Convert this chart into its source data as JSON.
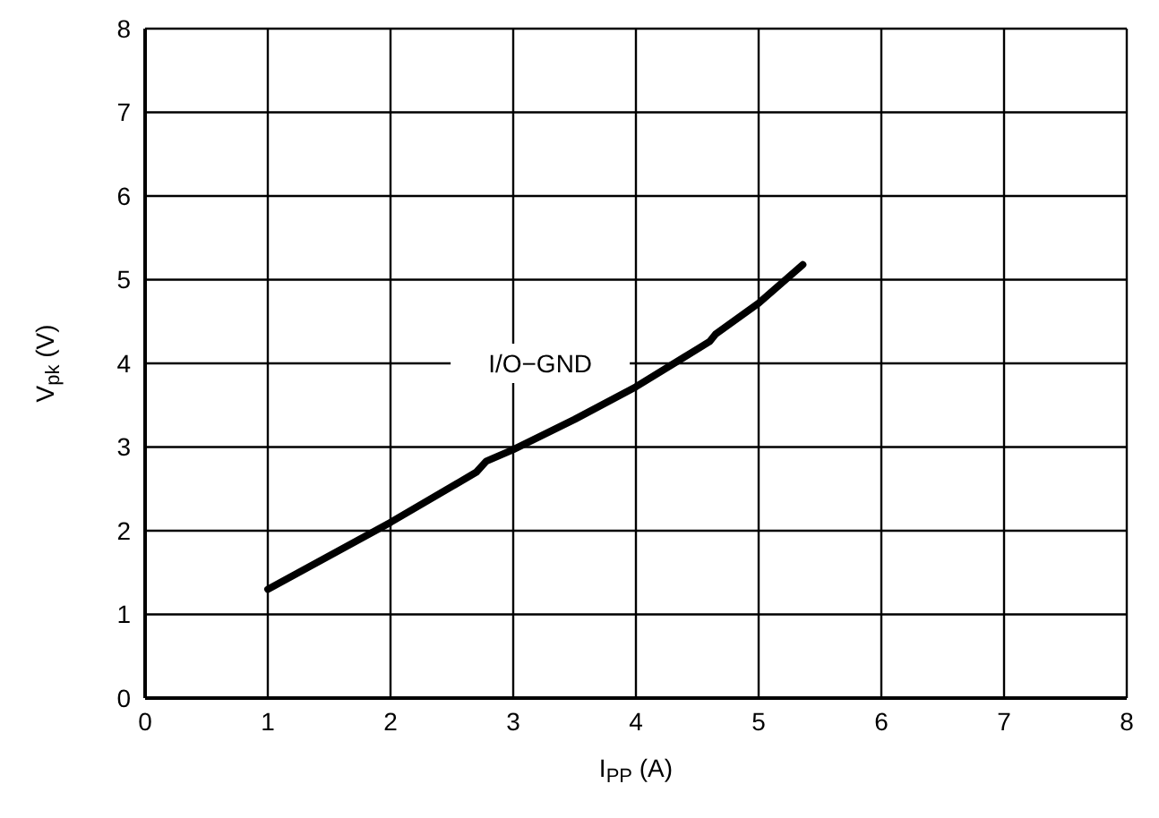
{
  "chart_data": {
    "type": "line",
    "xlabel": "I$_{PP}$ (A)",
    "ylabel": "V$_{pk}$ (V)",
    "xlim": [
      0,
      8
    ],
    "ylim": [
      0,
      8
    ],
    "xticks": [
      0,
      1,
      2,
      3,
      4,
      5,
      6,
      7,
      8
    ],
    "yticks": [
      0,
      1,
      2,
      3,
      4,
      5,
      6,
      7,
      8
    ],
    "grid": true,
    "marker": "none",
    "line_style": "solid",
    "series": [
      {
        "name": "I/O−GND",
        "color": "#000000",
        "x": [
          1,
          2,
          2.7,
          2.78,
          3,
          3.5,
          4,
          4.5,
          4.6,
          4.65,
          5,
          5.36
        ],
        "values": [
          1.3,
          2.1,
          2.7,
          2.83,
          2.97,
          3.33,
          3.72,
          4.17,
          4.26,
          4.35,
          4.72,
          5.18
        ]
      }
    ]
  }
}
